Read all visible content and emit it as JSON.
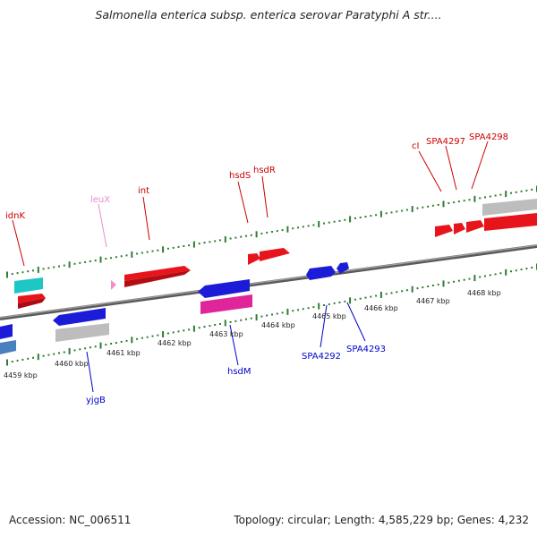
{
  "title": "Salmonella enterica subsp. enterica serovar Paratyphi A str....",
  "footer": {
    "accession": "Accession: NC_006511",
    "summary": "Topology: circular; Length: 4,585,229 bp; Genes: 4,232"
  },
  "colors": {
    "backbone": "#777777",
    "tick": "#2e7d32",
    "gene_red": "#e8141c",
    "gene_blue": "#1c1cd8",
    "gene_grey": "#bdbdbd",
    "gene_cyan": "#1fc6c6",
    "gene_magenta": "#e0249a",
    "gene_pink": "#f58ac8",
    "gene_steel": "#4a7fc0",
    "label_top": "#cc0000",
    "label_bottom": "#0000cc",
    "label_trna": "#ee88cc"
  },
  "scale": {
    "labels": [
      "4459 kbp",
      "4460 kbp",
      "4461 kbp",
      "4462 kbp",
      "4463 kbp",
      "4464 kbp",
      "4465 kbp",
      "4466 kbp",
      "4467 kbp",
      "4468 kbp"
    ]
  },
  "gene_labels": {
    "top": [
      "idnK",
      "leuX",
      "int",
      "hsdS",
      "hsdR",
      "cI",
      "SPA4297",
      "SPA4298"
    ],
    "bottom": [
      "yjgB",
      "hsdM",
      "SPA4292",
      "SPA4293"
    ]
  },
  "genes": [
    {
      "name": "idnK",
      "color": "gene_red"
    },
    {
      "name": "leuX",
      "color": "gene_pink"
    },
    {
      "name": "int",
      "color": "gene_red"
    },
    {
      "name": "hsdS",
      "color": "gene_red"
    },
    {
      "name": "hsdR",
      "color": "gene_red"
    },
    {
      "name": "cI",
      "color": "gene_red"
    },
    {
      "name": "SPA4297",
      "color": "gene_red"
    },
    {
      "name": "SPA4298",
      "color": "gene_red"
    },
    {
      "name": "yjgB",
      "color": "gene_blue"
    },
    {
      "name": "hsdM",
      "color": "gene_blue"
    },
    {
      "name": "SPA4292",
      "color": "gene_blue"
    },
    {
      "name": "SPA4293",
      "color": "gene_blue"
    }
  ]
}
